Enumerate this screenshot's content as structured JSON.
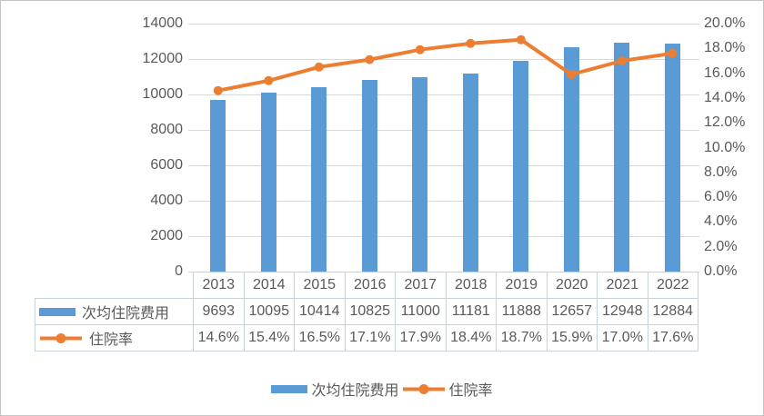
{
  "chart_data": {
    "type": "bar+line combo with data table",
    "categories": [
      "2013",
      "2014",
      "2015",
      "2016",
      "2017",
      "2018",
      "2019",
      "2020",
      "2021",
      "2022"
    ],
    "series": [
      {
        "name": "次均住院费用",
        "type": "bar",
        "axis": "left",
        "color": "#5b9bd5",
        "values": [
          9693,
          10095,
          10414,
          10825,
          11000,
          11181,
          11888,
          12657,
          12948,
          12884
        ],
        "value_labels": [
          "9693",
          "10095",
          "10414",
          "10825",
          "11000",
          "11181",
          "11888",
          "12657",
          "12948",
          "12884"
        ]
      },
      {
        "name": "住院率",
        "type": "line",
        "axis": "right",
        "color": "#ed7d31",
        "values_percent": [
          14.6,
          15.4,
          16.5,
          17.1,
          17.9,
          18.4,
          18.7,
          15.9,
          17.0,
          17.6
        ],
        "value_labels": [
          "14.6%",
          "15.4%",
          "16.5%",
          "17.1%",
          "17.9%",
          "18.4%",
          "18.7%",
          "15.9%",
          "17.0%",
          "17.6%"
        ]
      }
    ],
    "left_axis": {
      "min": 0,
      "max": 14000,
      "step": 2000,
      "ticks_top_down": [
        "14000",
        "12000",
        "10000",
        "8000",
        "6000",
        "4000",
        "2000",
        "0"
      ]
    },
    "right_axis": {
      "min_percent": 0.0,
      "max_percent": 20.0,
      "step_percent": 2.0,
      "ticks_top_down": [
        "20.0%",
        "18.0%",
        "16.0%",
        "14.0%",
        "12.0%",
        "10.0%",
        "8.0%",
        "6.0%",
        "4.0%",
        "2.0%",
        "0.0%"
      ]
    },
    "grid": "horizontal gridlines at every 2000 on left axis",
    "legend_position": "bottom-center",
    "data_table_shown": true
  },
  "colors": {
    "bar": "#5b9bd5",
    "line": "#ed7d31",
    "gridline": "#d9d9d9",
    "text": "#595959",
    "table_border": "#c9d1d9",
    "canvas_border": "#c3c3c3"
  },
  "legend": {
    "bar_label": "次均住院费用",
    "line_label": "住院率"
  }
}
